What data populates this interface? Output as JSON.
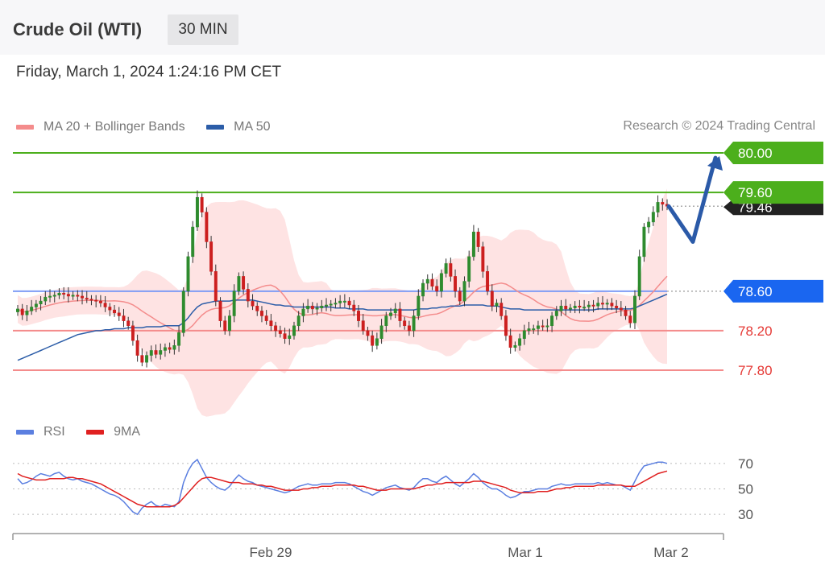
{
  "header": {
    "title": "Crude Oil (WTI)",
    "timeframe": "30 MIN",
    "timestamp": "Friday, March 1, 2024 1:24:16 PM CET"
  },
  "legend": {
    "items": [
      {
        "label": "MA 20 + Bollinger Bands",
        "color": "#f48c8c"
      },
      {
        "label": "MA 50",
        "color": "#2c5da8"
      }
    ],
    "credit": "Research © 2024 Trading Central"
  },
  "rsi_legend": {
    "items": [
      {
        "label": "RSI",
        "color": "#5b7fe0"
      },
      {
        "label": "9MA",
        "color": "#e02020"
      }
    ]
  },
  "chart_data": [
    {
      "type": "candlestick",
      "title": "",
      "ylim": [
        77.6,
        80.1
      ],
      "levels": [
        {
          "value": 80.0,
          "label": "80.00",
          "color": "#4caf1c",
          "kind": "resistance"
        },
        {
          "value": 79.6,
          "label": "79.60",
          "color": "#4caf1c",
          "kind": "resistance"
        },
        {
          "value": 79.46,
          "label": "79.46",
          "color": "#222222",
          "kind": "last-price"
        },
        {
          "value": 78.6,
          "label": "78.60",
          "color": "#2a6ef0",
          "kind": "pivot"
        },
        {
          "value": 78.2,
          "label": "78.20",
          "color": "#f48c8c",
          "kind": "support"
        },
        {
          "value": 77.8,
          "label": "77.80",
          "color": "#f48c8c",
          "kind": "support"
        }
      ],
      "x_ticks": [
        "Feb 29",
        "Mar 1",
        "Mar 2"
      ],
      "close": [
        78.42,
        78.36,
        78.4,
        78.44,
        78.47,
        78.5,
        78.54,
        78.55,
        78.56,
        78.58,
        78.57,
        78.55,
        78.56,
        78.55,
        78.53,
        78.52,
        78.51,
        78.5,
        78.48,
        78.44,
        78.41,
        78.38,
        78.35,
        78.3,
        78.25,
        78.1,
        77.95,
        77.88,
        77.95,
        78.0,
        77.96,
        78.0,
        78.03,
        78.01,
        78.05,
        78.18,
        78.6,
        78.95,
        79.25,
        79.55,
        79.4,
        79.1,
        78.8,
        78.5,
        78.3,
        78.2,
        78.35,
        78.6,
        78.75,
        78.62,
        78.5,
        78.45,
        78.4,
        78.35,
        78.3,
        78.25,
        78.2,
        78.17,
        78.12,
        78.15,
        78.25,
        78.35,
        78.42,
        78.45,
        78.42,
        78.43,
        78.45,
        78.46,
        78.47,
        78.48,
        78.5,
        78.5,
        78.46,
        78.4,
        78.3,
        78.2,
        78.15,
        78.05,
        78.12,
        78.25,
        78.35,
        78.38,
        78.42,
        78.3,
        78.25,
        78.2,
        78.35,
        78.55,
        78.68,
        78.72,
        78.65,
        78.6,
        78.78,
        78.88,
        78.75,
        78.6,
        78.5,
        78.7,
        78.95,
        79.2,
        79.05,
        78.8,
        78.6,
        78.45,
        78.48,
        78.35,
        78.15,
        78.03,
        78.05,
        78.12,
        78.2,
        78.22,
        78.22,
        78.25,
        78.24,
        78.25,
        78.35,
        78.4,
        78.45,
        78.42,
        78.43,
        78.45,
        78.44,
        78.44,
        78.46,
        78.45,
        78.48,
        78.47,
        78.48,
        78.45,
        78.43,
        78.41,
        78.35,
        78.28,
        78.55,
        78.95,
        79.25,
        79.3,
        79.4,
        79.5,
        79.48,
        79.46
      ],
      "ma50": [
        77.9,
        77.92,
        77.94,
        77.96,
        77.98,
        78.0,
        78.02,
        78.04,
        78.06,
        78.08,
        78.1,
        78.12,
        78.14,
        78.16,
        78.17,
        78.18,
        78.19,
        78.2,
        78.2,
        78.21,
        78.21,
        78.22,
        78.22,
        78.22,
        78.23,
        78.23,
        78.23,
        78.23,
        78.24,
        78.24,
        78.24,
        78.24,
        78.25,
        78.25,
        78.25,
        78.25,
        78.28,
        78.33,
        78.39,
        78.44,
        78.47,
        78.48,
        78.49,
        78.5,
        78.5,
        78.5,
        78.5,
        78.51,
        78.51,
        78.51,
        78.51,
        78.51,
        78.5,
        78.49,
        78.48,
        78.47,
        78.46,
        78.46,
        78.45,
        78.45,
        78.44,
        78.44,
        78.44,
        78.44,
        78.44,
        78.44,
        78.44,
        78.44,
        78.44,
        78.43,
        78.43,
        78.43,
        78.42,
        78.42,
        78.42,
        78.42,
        78.41,
        78.41,
        78.41,
        78.41,
        78.41,
        78.41,
        78.41,
        78.41,
        78.41,
        78.41,
        78.41,
        78.42,
        78.42,
        78.42,
        78.43,
        78.43,
        78.44,
        78.44,
        78.45,
        78.45,
        78.45,
        78.46,
        78.46,
        78.46,
        78.46,
        78.46,
        78.45,
        78.45,
        78.45,
        78.44,
        78.43,
        78.42,
        78.42,
        78.42,
        78.41,
        78.41,
        78.41,
        78.41,
        78.41,
        78.41,
        78.41,
        78.41,
        78.41,
        78.41,
        78.41,
        78.41,
        78.41,
        78.41,
        78.41,
        78.41,
        78.42,
        78.42,
        78.42,
        78.42,
        78.42,
        78.42,
        78.42,
        78.42,
        78.43,
        78.45,
        78.47,
        78.49,
        78.51,
        78.53,
        78.55,
        78.57
      ]
    },
    {
      "type": "line",
      "title": "",
      "ylim": [
        20,
        80
      ],
      "y_ticks": [
        70,
        50,
        30
      ],
      "series": [
        {
          "name": "RSI",
          "color": "#5b7fe0",
          "values": [
            58,
            54,
            55,
            57,
            60,
            62,
            61,
            60,
            62,
            63,
            60,
            58,
            57,
            58,
            56,
            55,
            54,
            52,
            50,
            48,
            46,
            45,
            43,
            40,
            36,
            32,
            30,
            35,
            38,
            40,
            37,
            36,
            38,
            37,
            36,
            40,
            55,
            64,
            70,
            73,
            66,
            59,
            55,
            52,
            50,
            49,
            52,
            57,
            61,
            58,
            56,
            55,
            53,
            52,
            51,
            50,
            49,
            48,
            47,
            48,
            50,
            52,
            53,
            54,
            53,
            53,
            54,
            54,
            54,
            55,
            55,
            55,
            54,
            52,
            50,
            48,
            47,
            45,
            47,
            49,
            51,
            52,
            53,
            51,
            50,
            49,
            51,
            55,
            58,
            58,
            56,
            55,
            58,
            60,
            57,
            54,
            52,
            55,
            58,
            62,
            59,
            55,
            52,
            50,
            50,
            48,
            45,
            43,
            44,
            46,
            48,
            48,
            49,
            50,
            50,
            50,
            52,
            53,
            54,
            53,
            53,
            54,
            54,
            54,
            54,
            54,
            55,
            54,
            55,
            54,
            53,
            53,
            51,
            49,
            56,
            63,
            68,
            69,
            70,
            71,
            71,
            70
          ]
        },
        {
          "name": "9MA",
          "color": "#e02020",
          "values": [
            62,
            60,
            59,
            58,
            57,
            57,
            57,
            58,
            58,
            58,
            58,
            59,
            59,
            58,
            58,
            57,
            56,
            55,
            54,
            52,
            50,
            48,
            46,
            44,
            42,
            40,
            38,
            37,
            36,
            36,
            36,
            36,
            36,
            36,
            37,
            39,
            43,
            47,
            51,
            55,
            58,
            59,
            59,
            58,
            57,
            56,
            55,
            55,
            55,
            54,
            54,
            54,
            53,
            53,
            52,
            52,
            51,
            50,
            49,
            49,
            49,
            49,
            50,
            50,
            51,
            51,
            52,
            52,
            52,
            53,
            53,
            53,
            53,
            53,
            52,
            52,
            51,
            50,
            49,
            49,
            49,
            50,
            50,
            50,
            50,
            50,
            50,
            51,
            52,
            53,
            53,
            54,
            54,
            55,
            55,
            55,
            55,
            55,
            55,
            56,
            56,
            56,
            55,
            54,
            53,
            52,
            51,
            49,
            48,
            47,
            47,
            47,
            47,
            48,
            48,
            48,
            49,
            50,
            50,
            51,
            51,
            52,
            52,
            52,
            52,
            52,
            53,
            53,
            53,
            53,
            53,
            53,
            52,
            52,
            52,
            54,
            56,
            58,
            60,
            62,
            63,
            64
          ]
        }
      ]
    }
  ]
}
